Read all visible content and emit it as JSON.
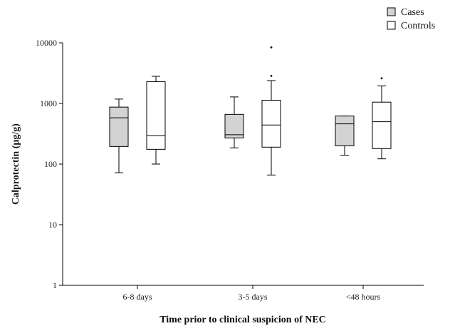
{
  "chart_data": {
    "type": "boxplot",
    "xlabel": "Time prior to clinical suspicion of NEC",
    "ylabel": "Calprotectin (µg/g)",
    "yscale": "log",
    "ylim": [
      1,
      10000
    ],
    "yticks": [
      {
        "value": 1,
        "label": "1"
      },
      {
        "value": 10,
        "label": "10"
      },
      {
        "value": 100,
        "label": "100"
      },
      {
        "value": 1000,
        "label": "1000"
      },
      {
        "value": 10000,
        "label": "10000"
      }
    ],
    "categories": [
      "6-8 days",
      "3-5 days",
      "<48 hours"
    ],
    "legend": {
      "position": "top-right",
      "entries": [
        {
          "label": "Cases",
          "color": "#d3d3d3"
        },
        {
          "label": "Controls",
          "color": "#ffffff"
        }
      ]
    },
    "series": [
      {
        "name": "Cases",
        "fill": "#d3d3d3",
        "boxes": [
          {
            "category": "6-8 days",
            "whisker_low": 72,
            "q1": 195,
            "median": 580,
            "q3": 870,
            "whisker_high": 1180,
            "outliers": []
          },
          {
            "category": "3-5 days",
            "whisker_low": 185,
            "q1": 270,
            "median": 305,
            "q3": 660,
            "whisker_high": 1280,
            "outliers": []
          },
          {
            "category": "<48 hours",
            "whisker_low": 140,
            "q1": 200,
            "median": 460,
            "q3": 620,
            "whisker_high": 620,
            "outliers": []
          }
        ]
      },
      {
        "name": "Controls",
        "fill": "#ffffff",
        "boxes": [
          {
            "category": "6-8 days",
            "whisker_low": 100,
            "q1": 175,
            "median": 295,
            "q3": 2280,
            "whisker_high": 2800,
            "outliers": []
          },
          {
            "category": "3-5 days",
            "whisker_low": 66,
            "q1": 190,
            "median": 440,
            "q3": 1130,
            "whisker_high": 2380,
            "outliers": [
              2850,
              8400
            ]
          },
          {
            "category": "<48 hours",
            "whisker_low": 122,
            "q1": 180,
            "median": 500,
            "q3": 1050,
            "whisker_high": 1950,
            "outliers": [
              2600
            ]
          }
        ]
      }
    ]
  }
}
